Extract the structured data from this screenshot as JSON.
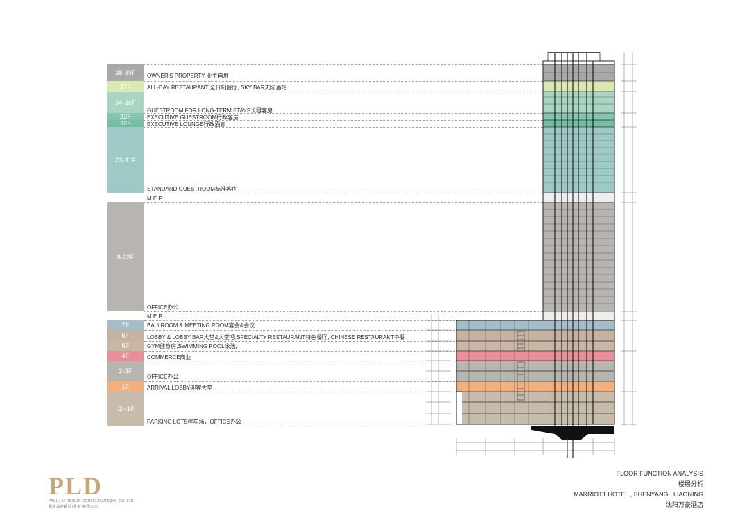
{
  "floors": [
    {
      "label": "38-39F",
      "desc": "OWNER'S PROPERTY 业主自用",
      "color": "#a9a9ab"
    },
    {
      "label": "37F",
      "desc": "ALL-DAY RESTAURANT 全日制餐厅, SKY BAR天际酒吧",
      "color": "#dbe8b2"
    },
    {
      "label": "34-36F",
      "desc": "GUESTROOM FOR LONG-TERM STAYS长租客房",
      "color": "#a9d6c3"
    },
    {
      "label": "33F",
      "desc": "EXECUTIVE GUESTROOM行政客房",
      "color": "#83c5ad"
    },
    {
      "label": "32F",
      "desc": "EXECUTIVE LOUNGE行政酒廊",
      "color": "#74bca4"
    },
    {
      "label": "23-31F",
      "desc": "STANDARD GUESTROOM标准客房",
      "color": "#9dcac7"
    },
    {
      "label": "",
      "desc": "M.E.P",
      "color": "#ffffff"
    },
    {
      "label": "8-22F",
      "desc": "OFFICE办公",
      "color": "#b8b5b0"
    },
    {
      "label": "",
      "desc": "M.E.P",
      "color": "#ffffff"
    },
    {
      "label": "7F",
      "desc": "BALLROOM & MEETING ROOM宴会&会议",
      "color": "#a5bccb"
    },
    {
      "label": "6F",
      "desc": "LOBBY & LOBBY BAR大堂&大堂吧,SPECIALTY RESTAURANT特色餐厅, CHINESE RESTAURANT中餐",
      "color": "#c7b29f"
    },
    {
      "label": "5F",
      "desc": "GYM健身房,SWIMMING POOL泳池，",
      "color": "#c8b6a6"
    },
    {
      "label": "4F",
      "desc": "COMMERCE商业",
      "color": "#e8909a"
    },
    {
      "label": "2-3F",
      "desc": "OFFICE办公",
      "color": "#b8b5b0"
    },
    {
      "label": "1F",
      "desc": "ARRIVAL LOBBY迎宾大堂",
      "color": "#f2b07e"
    },
    {
      "label": "-2--1F",
      "desc": "PARKING LOTS停车场，OFFICE办公",
      "color": "#c7bcac"
    }
  ],
  "logo": {
    "mark": "PLD",
    "company_en": "PAUL LIU DESIGN CONSULTANTS(HK) CO.,LTD",
    "company_cn": "劉波設計顧問(香港)有限公司"
  },
  "caption": {
    "line1": "FLOOR FUNCTION ANALYSIS",
    "line2": "楼层分析",
    "line3": "MARRIOTT HOTEL , SHENYANG , LIAONING",
    "line4": "沈阳万豪酒店"
  }
}
